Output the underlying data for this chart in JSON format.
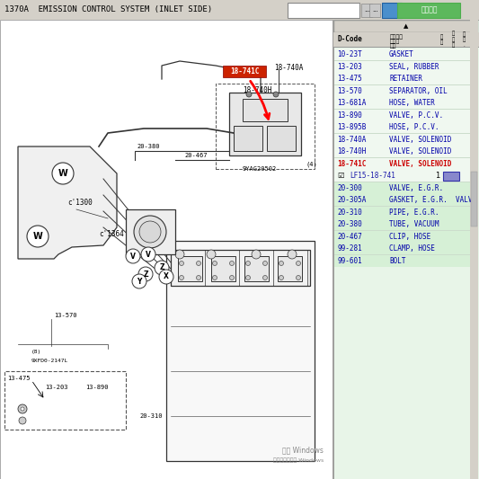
{
  "title_bar": "1370A  EMISSION CONTROL SYSTEM (INLET SIDE)",
  "bg_color": "#ffffff",
  "parts_table": [
    {
      "code": "10-23T",
      "name": "GASKET",
      "highlight": false,
      "green_section": false
    },
    {
      "code": "13-203",
      "name": "SEAL, RUBBER",
      "highlight": false,
      "green_section": false
    },
    {
      "code": "13-475",
      "name": "RETAINER",
      "highlight": false,
      "green_section": false
    },
    {
      "code": "13-570",
      "name": "SEPARATOR, OIL",
      "highlight": false,
      "green_section": false
    },
    {
      "code": "13-681A",
      "name": "HOSE, WATER",
      "highlight": false,
      "green_section": false
    },
    {
      "code": "13-890",
      "name": "VALVE, P.C.V.",
      "highlight": false,
      "green_section": false
    },
    {
      "code": "13-895B",
      "name": "HOSE, P.C.V.",
      "highlight": false,
      "green_section": false
    },
    {
      "code": "18-740A",
      "name": "VALVE, SOLENOID",
      "highlight": false,
      "green_section": false
    },
    {
      "code": "18-740H",
      "name": "VALVE, SOLENOID",
      "highlight": false,
      "green_section": false
    },
    {
      "code": "18-741C",
      "name": "VALVE, SOLENOID",
      "highlight": true,
      "green_section": false
    },
    {
      "code": "",
      "name": "LF15-18-741",
      "highlight": true,
      "green_section": false,
      "subrow": true
    },
    {
      "code": "20-300",
      "name": "VALVE, E.G.R.",
      "highlight": false,
      "green_section": true
    },
    {
      "code": "20-305A",
      "name": "GASKET, E.G.R.  VALVE",
      "highlight": false,
      "green_section": true
    },
    {
      "code": "20-310",
      "name": "PIPE, E.G.R.",
      "highlight": false,
      "green_section": true
    },
    {
      "code": "20-380",
      "name": "TUBE, VACUUM",
      "highlight": false,
      "green_section": true
    },
    {
      "code": "20-467",
      "name": "CLIP, HOSE",
      "highlight": false,
      "green_section": true
    },
    {
      "code": "99-281",
      "name": "CLAMP, HOSE",
      "highlight": false,
      "green_section": true
    },
    {
      "code": "99-601",
      "name": "BOLT",
      "highlight": false,
      "green_section": true
    }
  ],
  "fig_width": 5.33,
  "fig_height": 5.33,
  "dpi": 100
}
